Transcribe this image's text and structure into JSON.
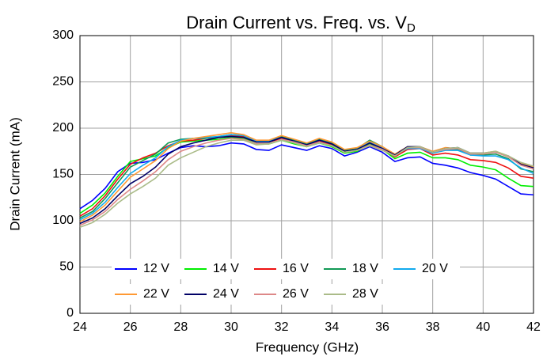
{
  "chart_data": {
    "type": "line",
    "title": "Drain Current vs. Freq. vs. V",
    "title_subscript": "D",
    "x_label": "Frequency (GHz)",
    "y_label": "Drain Current (mA)",
    "x": [
      24,
      24.5,
      25,
      25.5,
      26,
      26.5,
      27,
      27.5,
      28,
      28.5,
      29,
      29.5,
      30,
      30.5,
      31,
      31.5,
      32,
      32.5,
      33,
      33.5,
      34,
      34.5,
      35,
      35.5,
      36,
      36.5,
      37,
      37.5,
      38,
      38.5,
      39,
      39.5,
      40,
      40.5,
      41,
      41.5,
      42
    ],
    "series": [
      {
        "name": "12 V",
        "color": "#0000ff",
        "values": [
          113,
          122,
          135,
          153,
          162,
          163,
          166,
          173,
          179,
          181,
          180,
          181,
          184,
          183,
          177,
          176,
          182,
          179,
          176,
          181,
          178,
          170,
          174,
          180,
          174,
          164,
          168,
          169,
          162,
          160,
          157,
          152,
          149,
          145,
          137,
          129,
          128
        ]
      },
      {
        "name": "14 V",
        "color": "#00ee00",
        "values": [
          108,
          117,
          130,
          148,
          164,
          167,
          170,
          179,
          185,
          186,
          187,
          188,
          190,
          189,
          183,
          183,
          187,
          183,
          180,
          184,
          180,
          173,
          175,
          183,
          177,
          167,
          173,
          174,
          168,
          168,
          166,
          160,
          158,
          155,
          146,
          138,
          137
        ]
      },
      {
        "name": "16 V",
        "color": "#ee1111",
        "values": [
          105,
          113,
          127,
          145,
          161,
          168,
          173,
          181,
          186,
          187,
          189,
          190,
          192,
          191,
          185,
          185,
          189,
          186,
          182,
          186,
          182,
          174,
          177,
          185,
          178,
          169,
          177,
          178,
          171,
          173,
          171,
          166,
          165,
          163,
          157,
          148,
          146
        ]
      },
      {
        "name": "18 V",
        "color": "#119955",
        "values": [
          103,
          110,
          124,
          141,
          158,
          165,
          172,
          184,
          188,
          189,
          189,
          191,
          193,
          192,
          186,
          186,
          191,
          187,
          183,
          188,
          184,
          176,
          178,
          187,
          180,
          171,
          179,
          179,
          173,
          177,
          177,
          171,
          171,
          172,
          167,
          156,
          153
        ]
      },
      {
        "name": "20 V",
        "color": "#11aaee",
        "values": [
          101,
          108,
          120,
          136,
          151,
          160,
          168,
          180,
          187,
          189,
          190,
          191,
          193,
          192,
          186,
          186,
          190,
          186,
          182,
          187,
          183,
          175,
          177,
          185,
          179,
          171,
          178,
          178,
          173,
          176,
          176,
          171,
          170,
          170,
          166,
          157,
          151
        ]
      },
      {
        "name": "22 V",
        "color": "#ff9933",
        "values": [
          99,
          106,
          117,
          132,
          147,
          156,
          165,
          178,
          186,
          189,
          191,
          193,
          195,
          193,
          187,
          187,
          192,
          188,
          184,
          189,
          185,
          177,
          179,
          186,
          180,
          172,
          180,
          180,
          175,
          179,
          178,
          173,
          173,
          175,
          170,
          162,
          158
        ]
      },
      {
        "name": "24 V",
        "color": "#000066",
        "values": [
          97,
          103,
          113,
          127,
          140,
          148,
          158,
          172,
          180,
          184,
          187,
          190,
          191,
          190,
          185,
          185,
          190,
          186,
          182,
          187,
          183,
          175,
          177,
          184,
          178,
          171,
          180,
          180,
          174,
          178,
          179,
          173,
          173,
          174,
          170,
          161,
          157
        ]
      },
      {
        "name": "26 V",
        "color": "#dd8888",
        "values": [
          95,
          101,
          110,
          123,
          134,
          143,
          153,
          166,
          175,
          180,
          184,
          187,
          189,
          188,
          183,
          183,
          188,
          185,
          181,
          185,
          181,
          174,
          176,
          182,
          177,
          170,
          179,
          179,
          174,
          177,
          178,
          172,
          172,
          174,
          169,
          160,
          156
        ]
      },
      {
        "name": "28 V",
        "color": "#aabb88",
        "values": [
          93,
          98,
          107,
          119,
          129,
          137,
          146,
          160,
          168,
          174,
          180,
          184,
          187,
          187,
          182,
          183,
          187,
          184,
          180,
          184,
          181,
          174,
          176,
          181,
          176,
          170,
          179,
          180,
          174,
          178,
          179,
          173,
          173,
          175,
          170,
          163,
          159
        ]
      }
    ],
    "xlim": [
      24,
      42
    ],
    "xticks": [
      24,
      26,
      28,
      30,
      32,
      34,
      36,
      38,
      40,
      42
    ],
    "ylim": [
      0,
      300
    ],
    "yticks": [
      0,
      50,
      100,
      150,
      200,
      250,
      300
    ],
    "grid": true,
    "legend": "lower left"
  }
}
